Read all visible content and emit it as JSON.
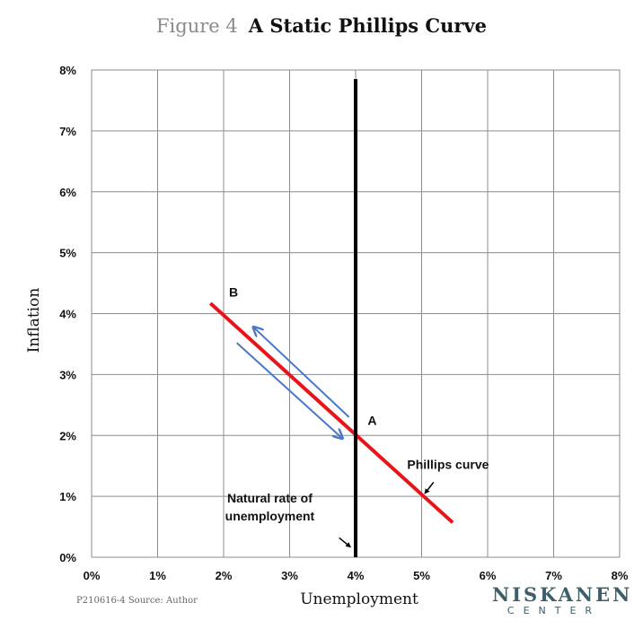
{
  "title": {
    "figure_number": "Figure 4",
    "name": "A Static Phillips Curve"
  },
  "footer": {
    "source": "P210616-4 Source: Author"
  },
  "logo": {
    "top": "NISKANEN",
    "bottom": "CENTER",
    "color": "#3c5f6b"
  },
  "chart_data": {
    "type": "line",
    "xlabel": "Unemployment",
    "ylabel": "Inflation",
    "xlim": [
      0,
      8
    ],
    "ylim": [
      0,
      8
    ],
    "x_ticks": [
      "0%",
      "1%",
      "2%",
      "3%",
      "4%",
      "5%",
      "6%",
      "7%",
      "8%"
    ],
    "y_ticks": [
      "0%",
      "1%",
      "2%",
      "3%",
      "4%",
      "5%",
      "6%",
      "7%",
      "8%"
    ],
    "grid": true,
    "series": [
      {
        "name": "Phillips curve",
        "color": "#e8141a",
        "x": [
          1.8,
          5.47
        ],
        "y": [
          4.17,
          0.57
        ]
      },
      {
        "name": "Natural rate of unemployment",
        "color": "#000000",
        "x": [
          4,
          4
        ],
        "y": [
          0,
          7.85
        ]
      }
    ],
    "arrows": [
      {
        "color": "#4a78c8",
        "from": [
          3.9,
          2.3
        ],
        "to": [
          2.45,
          3.78
        ]
      },
      {
        "color": "#4a78c8",
        "from": [
          2.2,
          3.52
        ],
        "to": [
          3.8,
          1.95
        ]
      }
    ],
    "points": [
      {
        "label": "B",
        "x": 2.15,
        "y": 4.28
      },
      {
        "label": "A",
        "x": 4.25,
        "y": 2.17
      }
    ],
    "annotations": [
      {
        "lines": [
          "Phillips curve"
        ],
        "x": 5.4,
        "y": 1.45,
        "pointer_from": [
          5.18,
          1.23
        ],
        "pointer_to": [
          5.05,
          1.05
        ]
      },
      {
        "lines": [
          "Natural rate of",
          "unemployment"
        ],
        "x": 2.7,
        "y": 0.9,
        "pointer_from": [
          3.75,
          0.32
        ],
        "pointer_to": [
          3.92,
          0.17
        ]
      }
    ]
  }
}
